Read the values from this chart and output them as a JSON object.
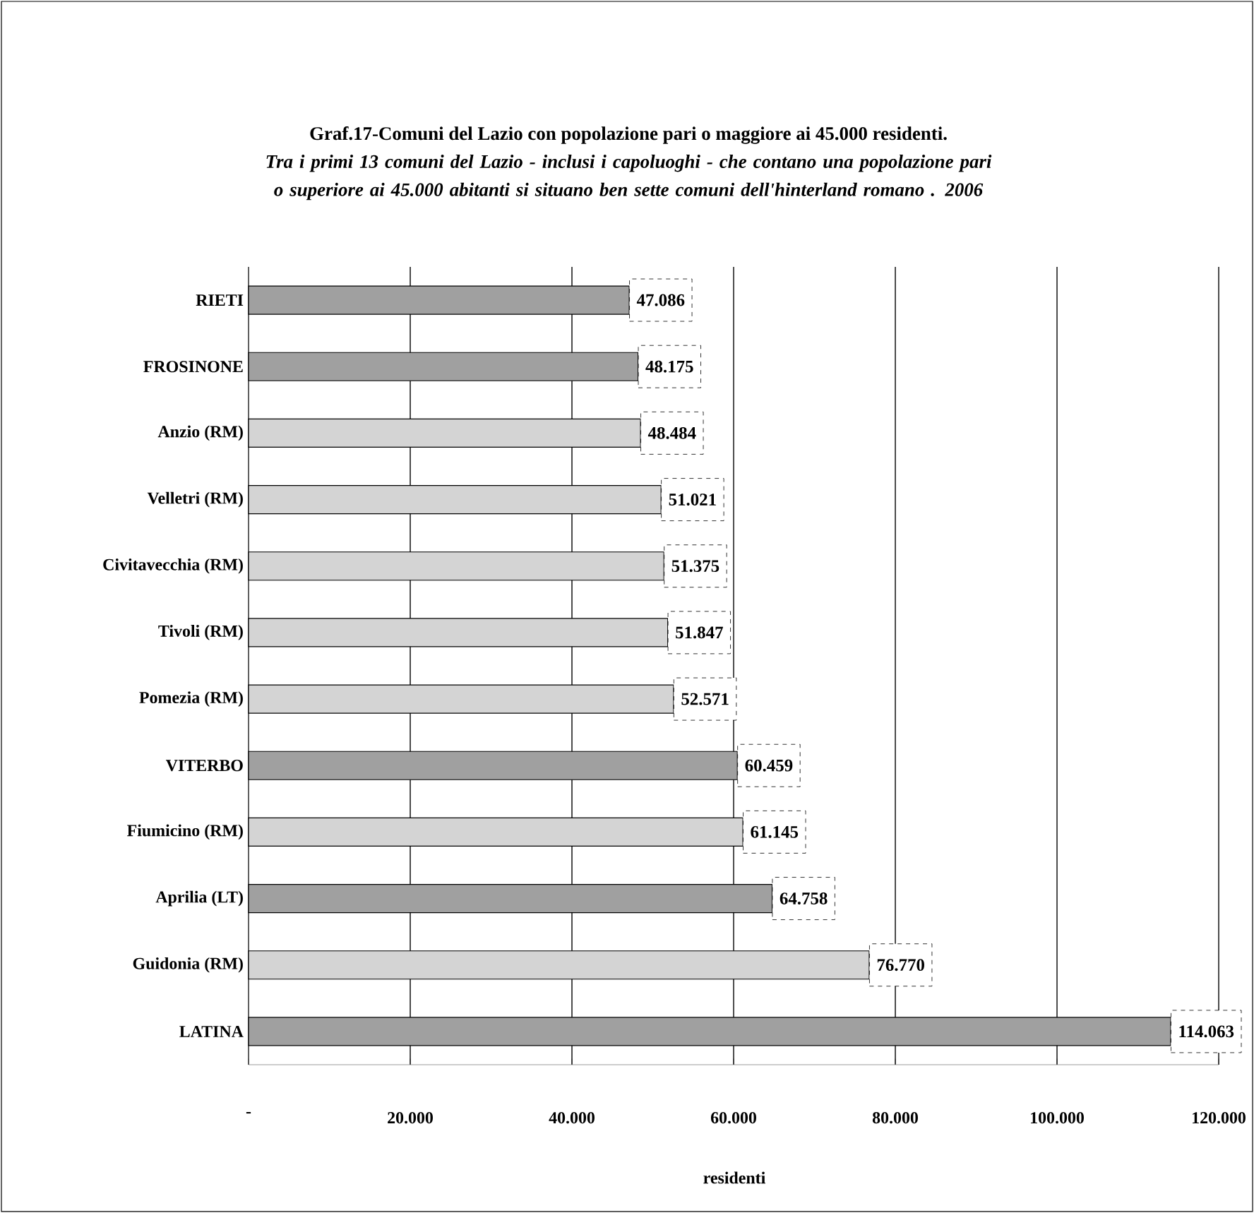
{
  "chart_data": {
    "type": "bar",
    "orientation": "horizontal",
    "title": "Graf.17-Comuni del Lazio con popolazione pari o maggiore ai 45.000 residenti.",
    "subtitle": "Tra i primi 13 comuni del Lazio - inclusi i capoluoghi - che contano una popolazione pari o superiore ai 45.000 abitanti si situano ben sette comuni dell'hinterland romano . 2006",
    "xlabel": "residenti",
    "categories": [
      "RIETI",
      "FROSINONE",
      "Anzio (RM)",
      "Velletri (RM)",
      "Civitavecchia (RM)",
      "Tivoli (RM)",
      "Pomezia (RM)",
      "VITERBO",
      "Fiumicino (RM)",
      "Aprilia (LT)",
      "Guidonia (RM)",
      "LATINA"
    ],
    "values": [
      47086,
      48175,
      48484,
      51021,
      51375,
      51847,
      52571,
      60459,
      61145,
      64758,
      76770,
      114063
    ],
    "value_labels": [
      "47.086",
      "48.175",
      "48.484",
      "51.021",
      "51.375",
      "51.847",
      "52.571",
      "60.459",
      "61.145",
      "64.758",
      "76.770",
      "114.063"
    ],
    "colors": [
      "#a0a0a0",
      "#a0a0a0",
      "#d4d4d4",
      "#d4d4d4",
      "#d4d4d4",
      "#d4d4d4",
      "#d4d4d4",
      "#a0a0a0",
      "#d4d4d4",
      "#a0a0a0",
      "#d4d4d4",
      "#a0a0a0"
    ],
    "xlim": [
      0,
      120000
    ],
    "xticks": [
      {
        "value": 0,
        "label": "-"
      },
      {
        "value": 20000,
        "label": "20.000"
      },
      {
        "value": 40000,
        "label": "40.000"
      },
      {
        "value": 60000,
        "label": "60.000"
      },
      {
        "value": 80000,
        "label": "80.000"
      },
      {
        "value": 100000,
        "label": "100.000"
      },
      {
        "value": 120000,
        "label": "120.000"
      }
    ],
    "grid": "x"
  }
}
